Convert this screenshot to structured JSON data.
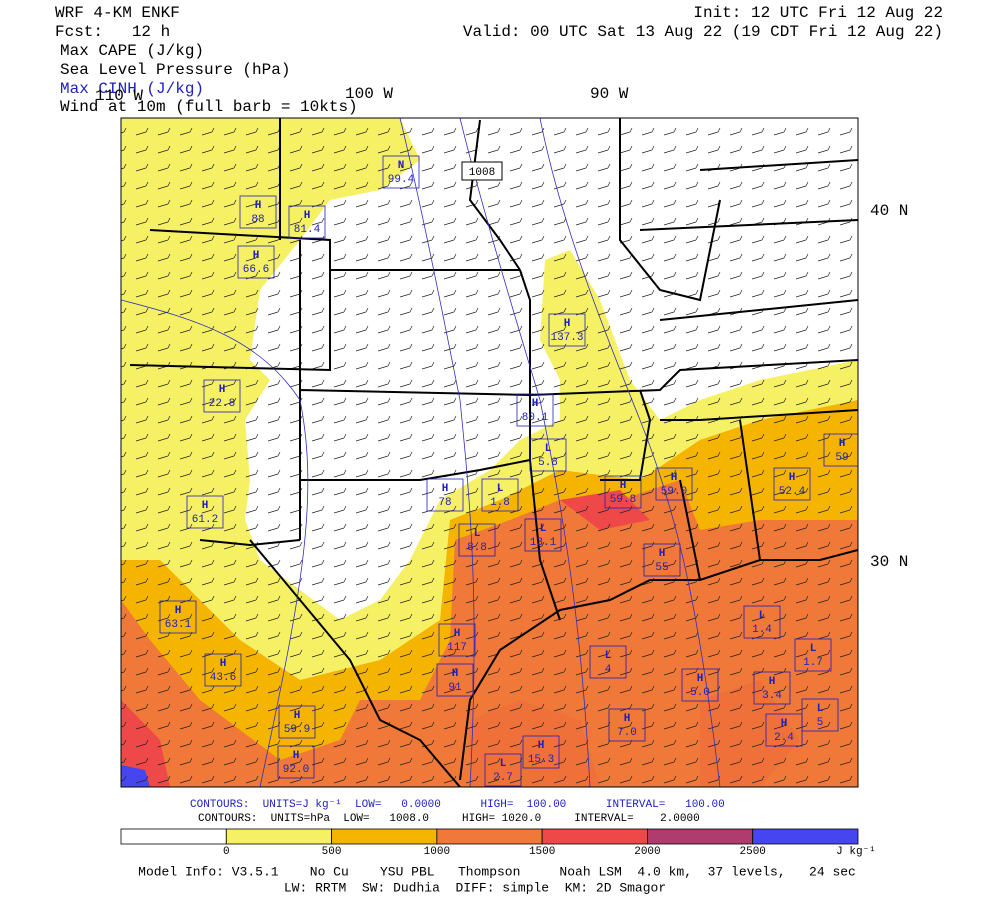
{
  "header": {
    "model": "WRF 4-KM ENKF",
    "forecast": "Fcst:   12 h",
    "fields": [
      "Max CAPE (J/kg)",
      "Sea Level Pressure (hPa)",
      "Max CINH (J/kg)",
      "Wind at 10m (full barb = 10kts)"
    ],
    "init": "Init: 12 UTC Fri 12 Aug 22",
    "valid": "Valid: 00 UTC Sat 13 Aug 22 (19 CDT Fri 12 Aug 22)"
  },
  "map": {
    "lon_labels": [
      "110 W",
      "100 W",
      "90 W"
    ],
    "lat_labels": [
      "40 N",
      "30 N"
    ],
    "isobar_label": "1008",
    "markers": [
      {
        "letter": "N",
        "value": "99.4"
      },
      {
        "letter": "H",
        "value": "88"
      },
      {
        "letter": "H",
        "value": "81.4"
      },
      {
        "letter": "H",
        "value": "66.6"
      },
      {
        "letter": "H",
        "value": "137.3"
      },
      {
        "letter": "H",
        "value": "22.8"
      },
      {
        "letter": "H",
        "value": "80.1"
      },
      {
        "letter": "L",
        "value": "5.8"
      },
      {
        "letter": "H",
        "value": "59"
      },
      {
        "letter": "H",
        "value": "78"
      },
      {
        "letter": "L",
        "value": "1.8"
      },
      {
        "letter": "H",
        "value": "59.8"
      },
      {
        "letter": "H",
        "value": "59.0"
      },
      {
        "letter": "H",
        "value": "52.4"
      },
      {
        "letter": "H",
        "value": "61.2"
      },
      {
        "letter": "L",
        "value": "8.8"
      },
      {
        "letter": "L",
        "value": "13.1"
      },
      {
        "letter": "H",
        "value": "55"
      },
      {
        "letter": "H",
        "value": "63.1"
      },
      {
        "letter": "L",
        "value": "1.4"
      },
      {
        "letter": "H",
        "value": "117"
      },
      {
        "letter": "L",
        "value": "1.7"
      },
      {
        "letter": "H",
        "value": "43.6"
      },
      {
        "letter": "L",
        "value": "4"
      },
      {
        "letter": "H",
        "value": "91"
      },
      {
        "letter": "H",
        "value": "5.0"
      },
      {
        "letter": "H",
        "value": "3.4"
      },
      {
        "letter": "H",
        "value": "59.9"
      },
      {
        "letter": "H",
        "value": "7.0"
      },
      {
        "letter": "H",
        "value": "2.4"
      },
      {
        "letter": "L",
        "value": "5"
      },
      {
        "letter": "H",
        "value": "15.3"
      },
      {
        "letter": "H",
        "value": "92.0"
      },
      {
        "letter": "L",
        "value": "2.7"
      }
    ]
  },
  "footer": {
    "contours_cape": "CONTOURS:  UNITS=J kg⁻¹  LOW=   0.0000      HIGH=  100.00      INTERVAL=   100.00",
    "contours_slp": "CONTOURS:  UNITS=hPa  LOW=   1008.0     HIGH= 1020.0     INTERVAL=    2.0000",
    "model_info": "Model Info: V3.5.1    No Cu    YSU PBL   Thompson     Noah LSM  4.0 km,  37 levels,   24 sec",
    "physics": "LW: RRTM  SW: Dudhia  DIFF: simple  KM: 2D Smagor"
  },
  "colorbar": {
    "ticks": [
      0,
      500,
      1000,
      1500,
      2000,
      2500
    ],
    "unit": "J kg⁻¹",
    "colors": [
      "#ffffff",
      "#f5f064",
      "#f5b400",
      "#f07838",
      "#ee4848",
      "#b03c6e",
      "#4646f0"
    ]
  }
}
